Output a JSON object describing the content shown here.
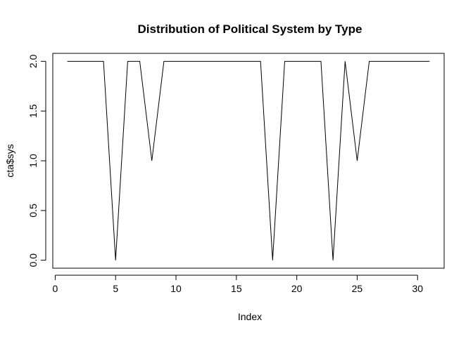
{
  "chart_data": {
    "type": "line",
    "title": "Distribution of Political System by Type",
    "xlabel": "Index",
    "ylabel": "cta$sys",
    "x": [
      1,
      2,
      3,
      4,
      5,
      6,
      7,
      8,
      9,
      10,
      11,
      12,
      13,
      14,
      15,
      16,
      17,
      18,
      19,
      20,
      21,
      22,
      23,
      24,
      25,
      26,
      27,
      28,
      29,
      30,
      31
    ],
    "series": [
      {
        "values": [
          2,
          2,
          2,
          2,
          0,
          2,
          2,
          1,
          2,
          2,
          2,
          2,
          2,
          2,
          2,
          2,
          2,
          0,
          2,
          2,
          2,
          2,
          0,
          2,
          1,
          2,
          2,
          2,
          2,
          2,
          2
        ]
      }
    ],
    "xlim": [
      -0.2,
      32.2
    ],
    "ylim": [
      -0.08,
      2.08
    ],
    "x_ticks": [
      0,
      5,
      10,
      15,
      20,
      25,
      30
    ],
    "y_ticks": [
      0.0,
      0.5,
      1.0,
      1.5,
      2.0
    ],
    "x_tick_labels": [
      "0",
      "5",
      "10",
      "15",
      "20",
      "25",
      "30"
    ],
    "y_tick_labels": [
      "0.0",
      "0.5",
      "1.0",
      "1.5",
      "2.0"
    ],
    "grid": false,
    "line_color": "#000000"
  }
}
